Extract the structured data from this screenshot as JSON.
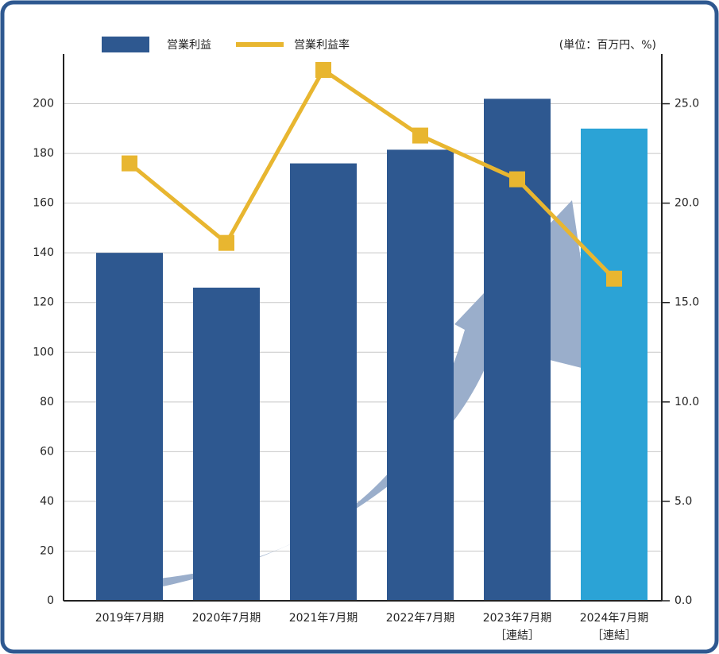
{
  "chart_data": {
    "type": "bar_line",
    "note": "(単位：百万円、%)",
    "categories": [
      [
        "2019年7月期"
      ],
      [
        "2020年7月期"
      ],
      [
        "2021年7月期"
      ],
      [
        "2022年7月期"
      ],
      [
        "2023年7月期",
        "［連結］"
      ],
      [
        "2024年7月期",
        "［連結］"
      ]
    ],
    "series": [
      {
        "name": "営業利益",
        "type": "bar",
        "color": "#2e5890",
        "highlight_color": "#2ba3d6",
        "values": [
          140,
          126,
          176,
          181.5,
          202,
          190
        ]
      },
      {
        "name": "営業利益率",
        "type": "line",
        "axis": "y2",
        "color": "#e8b630",
        "values": [
          22.0,
          18.0,
          26.7,
          23.4,
          21.2,
          16.2
        ]
      }
    ],
    "ylim": [
      0,
      220
    ],
    "yticks": [
      0,
      20,
      40,
      60,
      80,
      100,
      120,
      140,
      160,
      180,
      200
    ],
    "y2lim": [
      0,
      27.5
    ],
    "y2ticks": [
      {
        "value": 0,
        "label": "0.0"
      },
      {
        "value": 5,
        "label": "5.0"
      },
      {
        "value": 10,
        "label": "10.0"
      },
      {
        "value": 15,
        "label": "15.0"
      },
      {
        "value": 20,
        "label": "20.0"
      },
      {
        "value": 25,
        "label": "25.0"
      }
    ],
    "grid": true
  }
}
